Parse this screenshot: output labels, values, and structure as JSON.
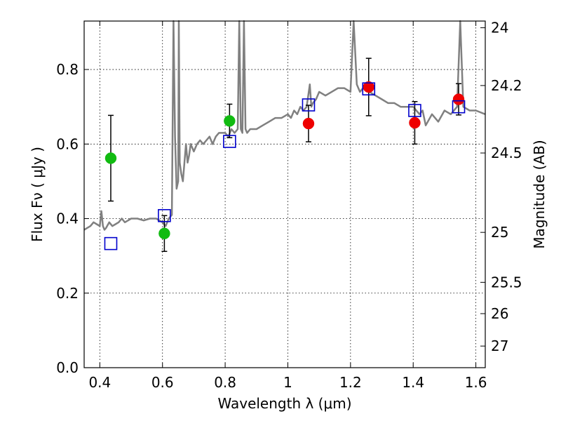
{
  "chart_data": {
    "type": "scatter",
    "xlabel": "Wavelength  λ (μm)",
    "ylabel": "Flux  Fν  ( μJy )",
    "ylabel_right": "Magnitude (AB)",
    "xlim": [
      0.35,
      1.63
    ],
    "ylim": [
      0.0,
      0.93
    ],
    "grid": true,
    "x_ticks": [
      0.4,
      0.6,
      0.8,
      1.0,
      1.2,
      1.4,
      1.6
    ],
    "x_tick_labels": [
      "0.4",
      "0.6",
      "0.8",
      "1",
      "1.2",
      "1.4",
      "1.6"
    ],
    "y_ticks": [
      0.0,
      0.2,
      0.4,
      0.6,
      0.8
    ],
    "y_tick_labels": [
      "0.0",
      "0.2",
      "0.4",
      "0.6",
      "0.8"
    ],
    "right_ticks": [
      {
        "flux": 0.912,
        "label": "24"
      },
      {
        "flux": 0.757,
        "label": "24.2"
      },
      {
        "flux": 0.576,
        "label": "24.5"
      },
      {
        "flux": 0.363,
        "label": "25"
      },
      {
        "flux": 0.229,
        "label": "25.5"
      },
      {
        "flux": 0.145,
        "label": "26"
      },
      {
        "flux": 0.058,
        "label": "27"
      }
    ],
    "colors": {
      "green": "#11bb11",
      "red": "#ee0000",
      "blue": "#0000cc",
      "model": "#808080",
      "errorbar": "#000000"
    },
    "series": [
      {
        "marker": "circle",
        "color": "green",
        "x": [
          0.435,
          0.606,
          0.814
        ],
        "y": [
          0.562,
          0.36,
          0.662
        ],
        "yerr": [
          0.115,
          0.048,
          0.045
        ]
      },
      {
        "marker": "circle",
        "color": "red",
        "x": [
          1.066,
          1.258,
          1.405,
          1.545
        ],
        "y": [
          0.655,
          0.753,
          0.657,
          0.72
        ],
        "yerr": [
          0.049,
          0.077,
          0.057,
          0.042
        ]
      },
      {
        "marker": "square",
        "color": "blue",
        "x": [
          0.435,
          0.606,
          0.814,
          1.066,
          1.258,
          1.405,
          1.545
        ],
        "y": [
          0.333,
          0.408,
          0.607,
          0.705,
          0.748,
          0.69,
          0.7
        ]
      }
    ],
    "model_curve": {
      "x": [
        0.35,
        0.36,
        0.37,
        0.38,
        0.39,
        0.4,
        0.405,
        0.41,
        0.415,
        0.42,
        0.43,
        0.44,
        0.45,
        0.46,
        0.47,
        0.48,
        0.49,
        0.5,
        0.52,
        0.54,
        0.56,
        0.58,
        0.6,
        0.61,
        0.62,
        0.63,
        0.635,
        0.64,
        0.645,
        0.65,
        0.652,
        0.655,
        0.66,
        0.665,
        0.67,
        0.675,
        0.68,
        0.685,
        0.69,
        0.7,
        0.71,
        0.72,
        0.73,
        0.74,
        0.75,
        0.76,
        0.77,
        0.78,
        0.8,
        0.81,
        0.82,
        0.83,
        0.84,
        0.845,
        0.85,
        0.855,
        0.86,
        0.865,
        0.87,
        0.88,
        0.9,
        0.92,
        0.94,
        0.96,
        0.98,
        1.0,
        1.01,
        1.02,
        1.03,
        1.04,
        1.05,
        1.06,
        1.07,
        1.075,
        1.08,
        1.09,
        1.1,
        1.12,
        1.14,
        1.16,
        1.18,
        1.2,
        1.21,
        1.22,
        1.23,
        1.24,
        1.26,
        1.28,
        1.3,
        1.32,
        1.34,
        1.36,
        1.38,
        1.4,
        1.42,
        1.43,
        1.44,
        1.46,
        1.48,
        1.5,
        1.52,
        1.54,
        1.55,
        1.56,
        1.58,
        1.6,
        1.63
      ],
      "y": [
        0.37,
        0.375,
        0.38,
        0.39,
        0.385,
        0.38,
        0.42,
        0.38,
        0.37,
        0.375,
        0.39,
        0.38,
        0.385,
        0.39,
        0.4,
        0.39,
        0.395,
        0.4,
        0.4,
        0.395,
        0.4,
        0.4,
        0.39,
        0.38,
        0.4,
        0.41,
        0.93,
        0.62,
        0.48,
        0.5,
        0.93,
        0.55,
        0.52,
        0.5,
        0.55,
        0.6,
        0.55,
        0.57,
        0.6,
        0.58,
        0.6,
        0.61,
        0.6,
        0.61,
        0.62,
        0.6,
        0.62,
        0.63,
        0.63,
        0.62,
        0.64,
        0.63,
        0.64,
        0.93,
        0.64,
        0.63,
        0.93,
        0.64,
        0.63,
        0.64,
        0.64,
        0.65,
        0.66,
        0.67,
        0.67,
        0.68,
        0.67,
        0.69,
        0.68,
        0.7,
        0.69,
        0.7,
        0.76,
        0.7,
        0.71,
        0.72,
        0.74,
        0.73,
        0.74,
        0.75,
        0.75,
        0.74,
        0.93,
        0.76,
        0.74,
        0.75,
        0.74,
        0.73,
        0.72,
        0.71,
        0.71,
        0.7,
        0.7,
        0.7,
        0.68,
        0.69,
        0.65,
        0.68,
        0.66,
        0.69,
        0.68,
        0.7,
        0.93,
        0.7,
        0.69,
        0.69,
        0.68
      ]
    }
  }
}
